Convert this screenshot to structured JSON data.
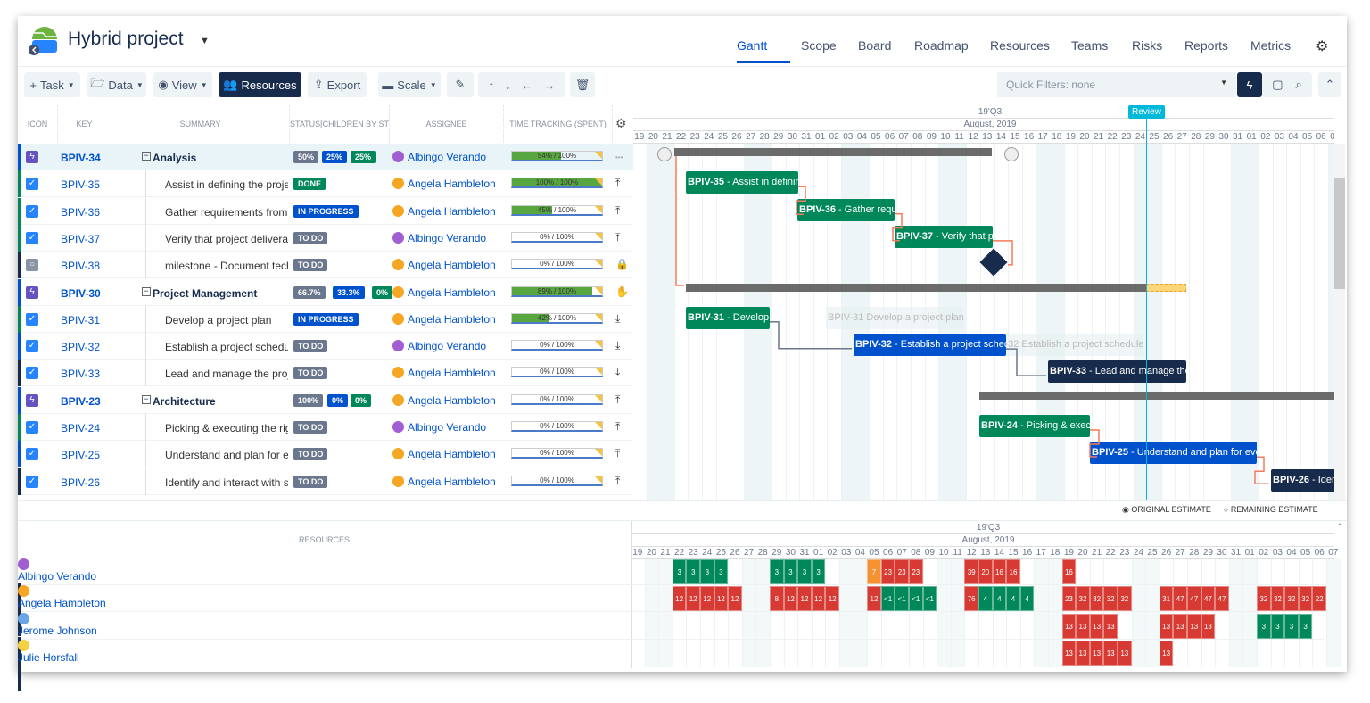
{
  "header": {
    "title": "Hybrid project",
    "nav": [
      "Gantt",
      "Scope",
      "Board",
      "Roadmap",
      "Resources",
      "Teams",
      "Risks",
      "Reports",
      "Metrics"
    ],
    "active_nav": "Gantt"
  },
  "toolbar": {
    "task": "Task",
    "data": "Data",
    "view": "View",
    "resources": "Resources",
    "export": "Export",
    "scale": "Scale",
    "quick_filters": "Quick Filters: none"
  },
  "columns": [
    "Icon",
    "Key",
    "Summary",
    "Status[Children by st",
    "Assignee",
    "Time tracking (spent)"
  ],
  "colors": {
    "epic": "#6554c0",
    "task": "#2684ff",
    "done": "#00875a",
    "inprogress": "#0052cc",
    "todo": "#6b778c",
    "green": "#00875a",
    "red": "#d63a32",
    "orange": "#f79232",
    "review": "#00b8d9",
    "dark": "#172b4d"
  },
  "rows": [
    {
      "key": "BPIV-34",
      "summary": "Analysis",
      "type": "epic",
      "parent": true,
      "badges": [
        "50%",
        "25%",
        "25%"
      ],
      "assignee": "Albingo Verando",
      "time": "54% / 100%",
      "spent": 54,
      "action": "ellipsis-icon"
    },
    {
      "key": "BPIV-35",
      "summary": "Assist in defining the project",
      "type": "task",
      "status": "DONE",
      "assignee": "Angela Hambleton",
      "time": "100% / 100%",
      "spent": 100,
      "action": "arrow-to-top-icon"
    },
    {
      "key": "BPIV-36",
      "summary": "Gather requirements from business",
      "type": "task",
      "status": "IN PROGRESS",
      "assignee": "Angela Hambleton",
      "time": "45% / 100%",
      "spent": 45,
      "action": "arrow-to-top-icon"
    },
    {
      "key": "BPIV-37",
      "summary": "Verify that project deliverables",
      "type": "task",
      "status": "TO DO",
      "assignee": "Albingo Verando",
      "time": "0% / 100%",
      "spent": 0,
      "action": "arrow-to-top-icon"
    },
    {
      "key": "BPIV-38",
      "summary": "milestone - Document technical",
      "type": "milestone",
      "status": "TO DO",
      "assignee": "Angela Hambleton",
      "time": "0% / 100%",
      "spent": 0,
      "action": "lock-icon"
    },
    {
      "key": "BPIV-30",
      "summary": "Project Management",
      "type": "epic",
      "parent": true,
      "badges": [
        "66.7%",
        "33.3%",
        "0%"
      ],
      "assignee": "Angela Hambleton",
      "time": "89% / 100%",
      "spent": 89,
      "action": "hand-icon"
    },
    {
      "key": "BPIV-31",
      "summary": "Develop a project plan",
      "type": "task",
      "status": "IN PROGRESS",
      "assignee": "Angela Hambleton",
      "time": "42% / 100%",
      "spent": 42,
      "action": "download-icon"
    },
    {
      "key": "BPIV-32",
      "summary": "Establish a project schedule",
      "type": "task",
      "status": "TO DO",
      "assignee": "Albingo Verando",
      "time": "0% / 100%",
      "spent": 0,
      "action": "download-icon"
    },
    {
      "key": "BPIV-33",
      "summary": "Lead and manage the project",
      "type": "task",
      "status": "TO DO",
      "assignee": "Angela Hambleton",
      "time": "0% / 100%",
      "spent": 0,
      "action": "download-icon"
    },
    {
      "key": "BPIV-23",
      "summary": "Architecture",
      "type": "epic",
      "parent": true,
      "badges": [
        "100%",
        "0%",
        "0%"
      ],
      "assignee": "Angela Hambleton",
      "time": "0% / 100%",
      "spent": 0,
      "action": "arrow-to-top-icon"
    },
    {
      "key": "BPIV-24",
      "summary": "Picking & executing the right",
      "type": "task",
      "status": "TO DO",
      "assignee": "Albingo Verando",
      "time": "0% / 100%",
      "spent": 0,
      "action": "arrow-to-top-icon"
    },
    {
      "key": "BPIV-25",
      "summary": "Understand and plan for evolution",
      "type": "task",
      "status": "TO DO",
      "assignee": "Angela Hambleton",
      "time": "0% / 100%",
      "spent": 0,
      "action": "arrow-to-top-icon"
    },
    {
      "key": "BPIV-26",
      "summary": "Identify and interact with stakeholders",
      "type": "task",
      "status": "TO DO",
      "assignee": "Angela Hambleton",
      "time": "0% / 100%",
      "spent": 0,
      "action": "arrow-to-top-icon"
    }
  ],
  "timeline": {
    "quarter": "19'Q3",
    "month": "August, 2019",
    "days": [
      "19",
      "20",
      "21",
      "22",
      "23",
      "24",
      "25",
      "26",
      "27",
      "28",
      "29",
      "30",
      "31",
      "01",
      "02",
      "03",
      "04",
      "05",
      "06",
      "07",
      "08",
      "09",
      "10",
      "11",
      "12",
      "13",
      "14",
      "15",
      "16",
      "17",
      "18",
      "19",
      "20",
      "21",
      "22",
      "23",
      "24",
      "25",
      "26",
      "27",
      "28",
      "29",
      "30",
      "31",
      "01",
      "02",
      "03",
      "04",
      "05",
      "06",
      "07"
    ],
    "marker": "Review"
  },
  "gantt_bars": [
    {
      "key": "BPIV-35",
      "text": " - Assist in defining the project",
      "color": "green"
    },
    {
      "key": "BPIV-36",
      "text": " - Gather requirements from business",
      "color": "green"
    },
    {
      "key": "BPIV-37",
      "text": " - Verify that project deliverables",
      "color": "green"
    },
    {
      "key": "BPIV-31",
      "text": " - Develop a project plan",
      "color": "green"
    },
    {
      "key": "BPIV-32",
      "text": " - Establish a project schedule",
      "color": "blue"
    },
    {
      "key": "BPIV-33",
      "text": " - Lead and manage the project",
      "color": "dark"
    },
    {
      "key": "BPIV-24",
      "text": " - Picking & executing the right",
      "color": "green"
    },
    {
      "key": "BPIV-25",
      "text": " - Understand and plan for evolution",
      "color": "blue"
    },
    {
      "key": "BPIV-26",
      "text": " - Identify and interact with stakeholders",
      "color": "dark"
    }
  ],
  "ghosts": [
    "BPIV-31 Develop a project plan",
    "BPIV-32 Establish a project schedule"
  ],
  "estimate": {
    "original": "ORIGINAL ESTIMATE",
    "remaining": "REMAINING ESTIMATE",
    "selected": "original"
  },
  "resources": {
    "header": "Resources",
    "people": [
      {
        "name": "Albingo Verando",
        "cells": [
          [
            "22",
            "3",
            "g"
          ],
          [
            "23",
            "3",
            "g"
          ],
          [
            "24",
            "3",
            "g"
          ],
          [
            "25",
            "3",
            "g"
          ],
          [
            "29",
            "3",
            "g"
          ],
          [
            "30",
            "3",
            "g"
          ],
          [
            "31",
            "3",
            "g"
          ],
          [
            "a01",
            "3",
            "g"
          ],
          [
            "a05",
            "7",
            "o"
          ],
          [
            "a06",
            "23",
            "r"
          ],
          [
            "a07",
            "23",
            "r"
          ],
          [
            "a08",
            "23",
            "r"
          ],
          [
            "a12",
            "39",
            "r"
          ],
          [
            "a13",
            "20",
            "r"
          ],
          [
            "a14",
            "16",
            "r"
          ],
          [
            "a15",
            "16",
            "r"
          ],
          [
            "a19",
            "16",
            "r"
          ]
        ]
      },
      {
        "name": "Angela Hambleton",
        "cells": [
          [
            "22",
            "12",
            "r"
          ],
          [
            "23",
            "12",
            "r"
          ],
          [
            "24",
            "12",
            "r"
          ],
          [
            "25",
            "12",
            "r"
          ],
          [
            "26",
            "12",
            "r"
          ],
          [
            "29",
            "8",
            "r"
          ],
          [
            "30",
            "12",
            "r"
          ],
          [
            "31",
            "12",
            "r"
          ],
          [
            "a01",
            "12",
            "r"
          ],
          [
            "a02",
            "12",
            "r"
          ],
          [
            "a05",
            "12",
            "r"
          ],
          [
            "a06",
            "<1",
            "g"
          ],
          [
            "a07",
            "<1",
            "g"
          ],
          [
            "a08",
            "<1",
            "g"
          ],
          [
            "a09",
            "<1",
            "g"
          ],
          [
            "a12",
            "76",
            "r"
          ],
          [
            "a13",
            "4",
            "g"
          ],
          [
            "a14",
            "4",
            "g"
          ],
          [
            "a15",
            "4",
            "g"
          ],
          [
            "a16",
            "4",
            "g"
          ],
          [
            "a19",
            "23",
            "r"
          ],
          [
            "a20",
            "32",
            "r"
          ],
          [
            "a21",
            "32",
            "r"
          ],
          [
            "a22",
            "32",
            "r"
          ],
          [
            "a23",
            "32",
            "r"
          ],
          [
            "a26",
            "31",
            "r"
          ],
          [
            "a27",
            "47",
            "r"
          ],
          [
            "a28",
            "47",
            "r"
          ],
          [
            "a29",
            "47",
            "r"
          ],
          [
            "a30",
            "47",
            "r"
          ],
          [
            "s02",
            "32",
            "r"
          ],
          [
            "s03",
            "32",
            "r"
          ],
          [
            "s04",
            "32",
            "r"
          ],
          [
            "s05",
            "32",
            "r"
          ],
          [
            "s06",
            "22",
            "r"
          ]
        ]
      },
      {
        "name": "Jerome Johnson",
        "cells": [
          [
            "a19",
            "13",
            "r"
          ],
          [
            "a20",
            "13",
            "r"
          ],
          [
            "a21",
            "13",
            "r"
          ],
          [
            "a22",
            "13",
            "r"
          ],
          [
            "a26",
            "13",
            "r"
          ],
          [
            "a27",
            "13",
            "r"
          ],
          [
            "a28",
            "13",
            "r"
          ],
          [
            "a29",
            "13",
            "r"
          ],
          [
            "s02",
            "3",
            "g"
          ],
          [
            "s03",
            "3",
            "g"
          ],
          [
            "s04",
            "3",
            "g"
          ],
          [
            "s05",
            "3",
            "g"
          ]
        ]
      },
      {
        "name": "Julie Horsfall",
        "cells": [
          [
            "a19",
            "13",
            "r"
          ],
          [
            "a20",
            "13",
            "r"
          ],
          [
            "a21",
            "13",
            "r"
          ],
          [
            "a22",
            "13",
            "r"
          ],
          [
            "a23",
            "13",
            "r"
          ],
          [
            "a26",
            "13",
            "r"
          ]
        ]
      }
    ]
  }
}
